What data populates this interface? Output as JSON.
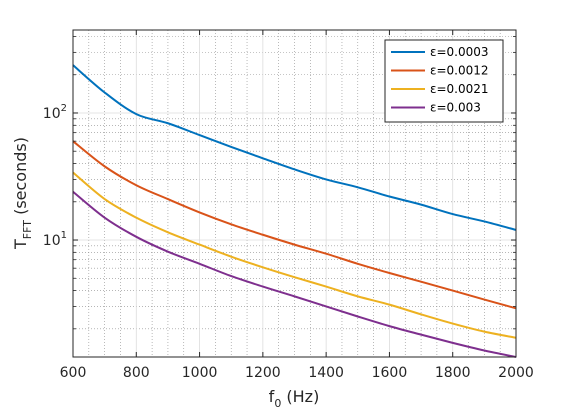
{
  "chart_data": {
    "type": "line",
    "xlabel": {
      "main": "f",
      "sub": "0",
      "rest": " (Hz)"
    },
    "ylabel": {
      "main": "T",
      "sub": "FFT",
      "rest": " (seconds)"
    },
    "xlim": [
      600,
      2000
    ],
    "ylim": [
      1.2,
      450
    ],
    "yscale": "log",
    "grid": true,
    "minor_grid": true,
    "legend_position": "top-right",
    "x_ticks": [
      600,
      800,
      1000,
      1200,
      1400,
      1600,
      1800,
      2000
    ],
    "y_ticks": [
      {
        "value": 10,
        "base": "10",
        "exp": "1"
      },
      {
        "value": 100,
        "base": "10",
        "exp": "2"
      }
    ],
    "x": [
      600,
      700,
      800,
      900,
      1000,
      1100,
      1200,
      1300,
      1400,
      1500,
      1600,
      1700,
      1800,
      1900,
      2000
    ],
    "series": [
      {
        "name": "ε=0.0003",
        "color": "#0072BD",
        "values": [
          238,
          145,
          98,
          83,
          67,
          54,
          44,
          36,
          30,
          26,
          22,
          19,
          16,
          14,
          12
        ]
      },
      {
        "name": "ε=0.0012",
        "color": "#D95319",
        "values": [
          60,
          38,
          27,
          21,
          16.5,
          13.3,
          11,
          9.2,
          7.8,
          6.5,
          5.5,
          4.7,
          4.0,
          3.4,
          2.9
        ]
      },
      {
        "name": "ε=0.0021",
        "color": "#EDB120",
        "values": [
          34,
          21,
          15,
          11.5,
          9.2,
          7.4,
          6.1,
          5.1,
          4.3,
          3.6,
          3.1,
          2.6,
          2.2,
          1.9,
          1.7
        ]
      },
      {
        "name": "ε=0.003",
        "color": "#7E2F8E",
        "values": [
          24,
          15,
          10.6,
          8.1,
          6.5,
          5.2,
          4.3,
          3.6,
          3.0,
          2.5,
          2.1,
          1.8,
          1.55,
          1.35,
          1.2
        ]
      }
    ]
  }
}
